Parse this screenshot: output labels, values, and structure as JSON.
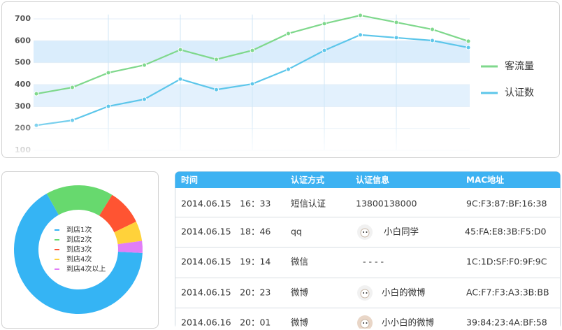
{
  "chart_data": [
    {
      "type": "line",
      "categories": [
        null,
        null,
        null,
        null,
        null,
        null,
        null,
        null,
        null,
        null,
        null,
        null,
        null
      ],
      "series": [
        {
          "name": "客流量",
          "color": "#7fd88c",
          "values": [
            358,
            387,
            454,
            489,
            559,
            515,
            556,
            633,
            678,
            716,
            684,
            652,
            598
          ]
        },
        {
          "name": "认证数",
          "color": "#5cc6ea",
          "values": [
            214,
            237,
            301,
            333,
            425,
            377,
            403,
            470,
            556,
            627,
            614,
            601,
            569
          ]
        }
      ],
      "ylim": [
        100,
        720
      ],
      "yticks": [
        100,
        200,
        300,
        400,
        500,
        600,
        700
      ],
      "grid": true,
      "legend": "right"
    },
    {
      "type": "pie",
      "categories": [
        "到店1次",
        "到店2次",
        "到店3次",
        "到店4次",
        "到店4次以上"
      ],
      "values": [
        66,
        17,
        9,
        5,
        3
      ],
      "colors": [
        "#35b4f4",
        "#67d96e",
        "#ff5432",
        "#ffd23a",
        "#e17ef7"
      ],
      "legend": "center"
    }
  ],
  "table": {
    "header": [
      "时间",
      "认证方式",
      "认证信息",
      "MAC地址"
    ],
    "rows": [
      [
        "2014.06.15　16：33",
        "短信认证",
        "13800138000",
        "9C:F3:87:BF:16:38"
      ],
      [
        "2014.06.15　18：46",
        "qq",
        "小白同学",
        "45:FA:E8:3B:F5:D0"
      ],
      [
        "2014.06.15　19：14",
        "微信",
        "- - - -",
        "1C:1D:SF:F0:9F:9C"
      ],
      [
        "2014.06.15　20：23",
        "微博",
        "小白的微博",
        "AC:F7:F3:A3:3B:BB"
      ],
      [
        "2014.06.16　20：01",
        "微博",
        "小小白的微博",
        "39:84:23:4A:BF:58"
      ]
    ]
  }
}
